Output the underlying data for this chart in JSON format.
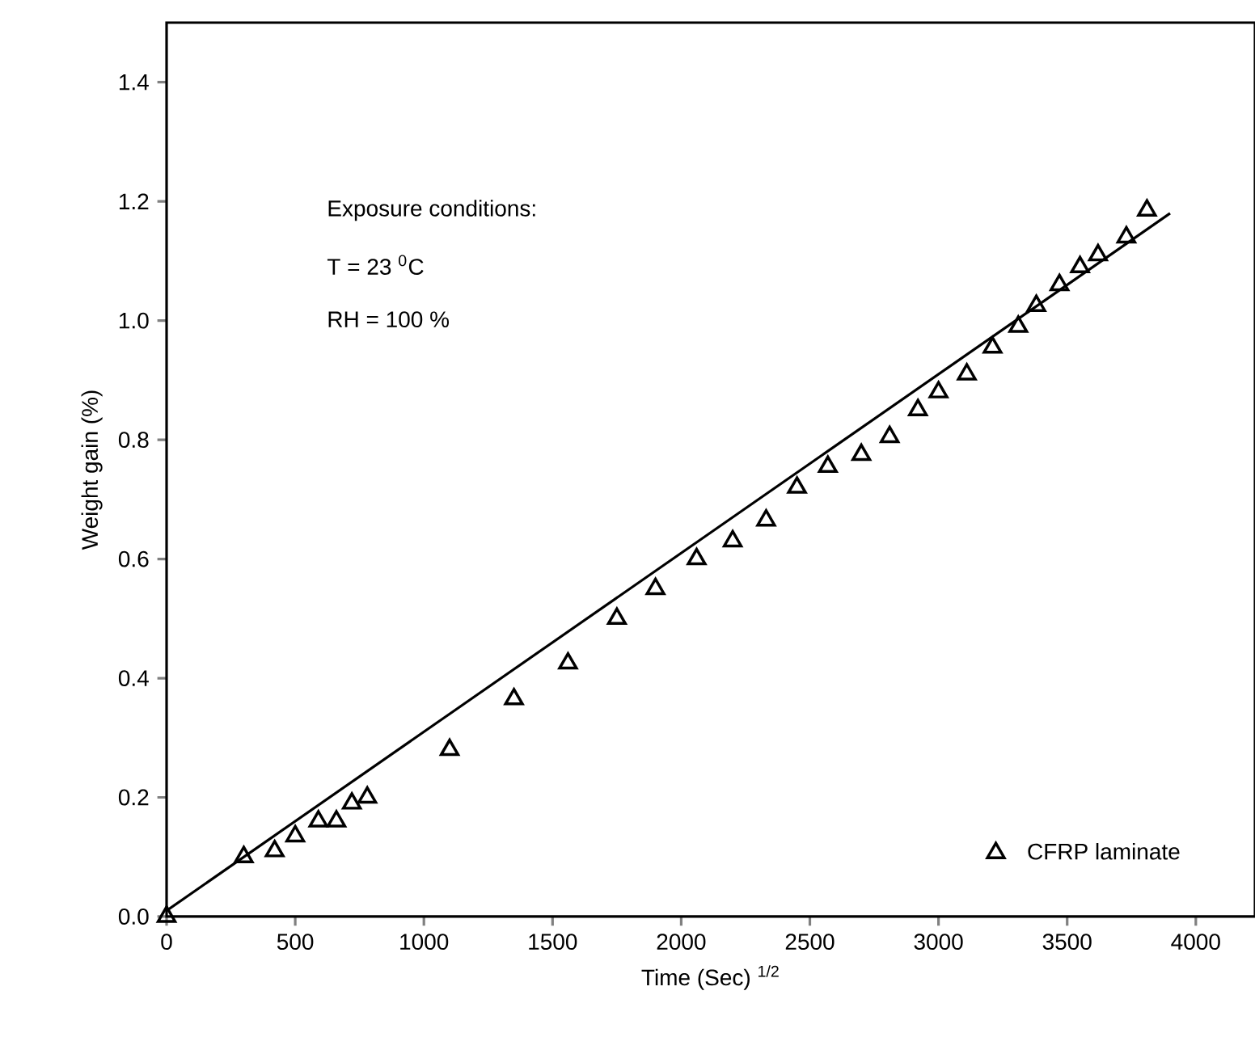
{
  "chart_data": {
    "type": "scatter",
    "xlabel": "Time (Sec) $^{1/2}$",
    "ylabel": "Weight gain (%)",
    "annotations": [
      "Exposure conditions:",
      "T = 23 $^{0}$C",
      "RH = 100 %"
    ],
    "xlim": [
      0,
      4230
    ],
    "ylim": [
      0,
      1.5
    ],
    "xticks": [
      0,
      500,
      1000,
      1500,
      2000,
      2500,
      3000,
      3500,
      4000
    ],
    "yticks": [
      {
        "value": 0,
        "label": "0.0"
      },
      {
        "value": 0.2,
        "label": "0.2"
      },
      {
        "value": 0.4,
        "label": "0.4"
      },
      {
        "value": 0.6,
        "label": "0.6"
      },
      {
        "value": 0.8,
        "label": "0.8"
      },
      {
        "value": 1,
        "label": "1.0"
      },
      {
        "value": 1.2,
        "label": "1.2"
      },
      {
        "value": 1.4,
        "label": "1.4"
      }
    ],
    "legend": "bottom right",
    "grid": false,
    "series": [
      {
        "name": "CFRP laminate",
        "marker": "triangle",
        "color": "#000000",
        "x": [
          0,
          300,
          420,
          500,
          590,
          660,
          720,
          780,
          1100,
          1350,
          1560,
          1750,
          1900,
          2060,
          2200,
          2330,
          2450,
          2570,
          2700,
          2810,
          2920,
          3000,
          3110,
          3210,
          3310,
          3380,
          3470,
          3550,
          3620,
          3730,
          3810
        ],
        "values": [
          0,
          0.1,
          0.11,
          0.135,
          0.16,
          0.16,
          0.19,
          0.2,
          0.28,
          0.365,
          0.425,
          0.5,
          0.55,
          0.6,
          0.63,
          0.665,
          0.72,
          0.755,
          0.775,
          0.805,
          0.85,
          0.88,
          0.91,
          0.955,
          0.99,
          1.025,
          1.06,
          1.09,
          1.11,
          1.14,
          1.185
        ]
      },
      {
        "type": "line",
        "marker": "none",
        "line_style": "solid",
        "color": "#000000",
        "x": [
          0,
          3900
        ],
        "values": [
          0.01,
          1.18
        ]
      }
    ]
  }
}
